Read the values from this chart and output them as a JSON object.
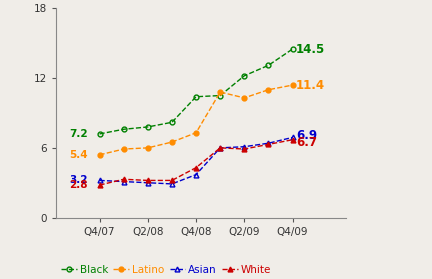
{
  "x_positions": [
    0,
    1,
    2,
    3,
    4,
    5,
    6,
    7,
    8
  ],
  "x_tick_labels": [
    "Q4/07",
    "Q2/08",
    "Q4/08",
    "Q2/09",
    "Q4/09"
  ],
  "x_tick_positions": [
    0,
    2,
    4,
    6,
    8
  ],
  "black": [
    7.2,
    7.6,
    7.8,
    8.2,
    10.4,
    10.5,
    12.2,
    13.1,
    14.5
  ],
  "latino": [
    5.4,
    5.9,
    6.0,
    6.5,
    7.3,
    10.8,
    10.3,
    11.0,
    11.4
  ],
  "asian": [
    3.2,
    3.1,
    3.0,
    2.9,
    3.7,
    6.0,
    6.1,
    6.4,
    6.9
  ],
  "white": [
    2.8,
    3.3,
    3.2,
    3.2,
    4.3,
    6.0,
    5.9,
    6.3,
    6.7
  ],
  "black_color": "#008000",
  "latino_color": "#FF8C00",
  "asian_color": "#0000CC",
  "white_color": "#CC0000",
  "ylim": [
    0,
    18
  ],
  "yticks": [
    0,
    6,
    12,
    18
  ],
  "end_labels": {
    "black": "14.5",
    "latino": "11.4",
    "asian": "6.9",
    "white": "6.7"
  },
  "start_labels": {
    "black": "7.2",
    "latino": "5.4",
    "asian": "3.2",
    "white": "2.8"
  },
  "bg_color": "#F0EDE8"
}
